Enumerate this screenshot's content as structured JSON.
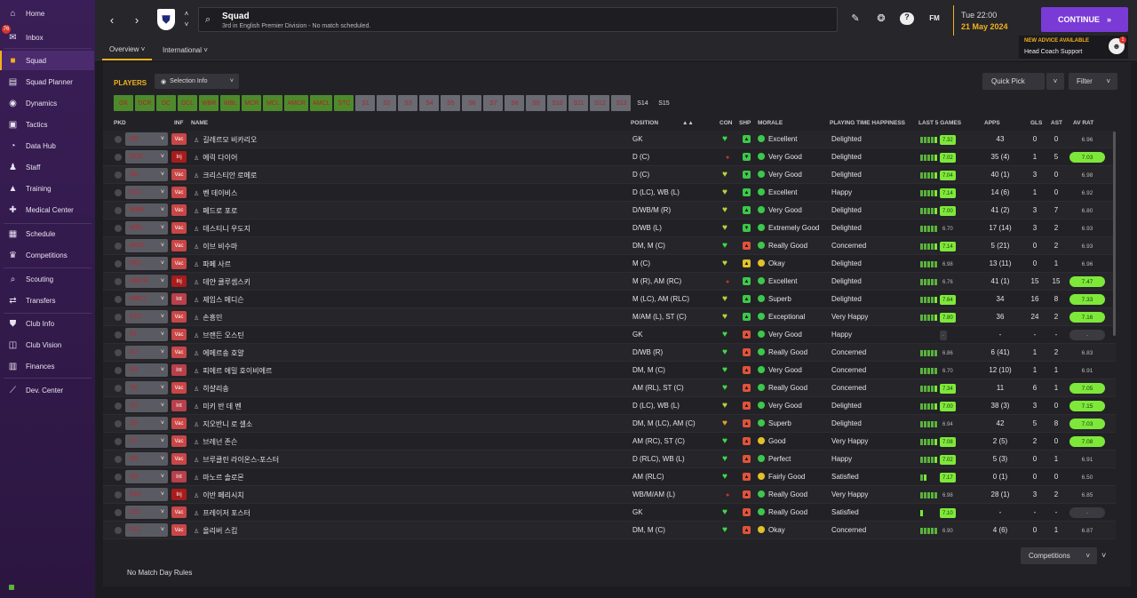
{
  "sidebar": {
    "items": [
      {
        "label": "Home",
        "icon": "home-icon",
        "glyph": "⌂"
      },
      {
        "label": "Inbox",
        "icon": "inbox-icon",
        "glyph": "✉"
      },
      {
        "label": "Squad",
        "icon": "shirt-icon",
        "glyph": "■"
      },
      {
        "label": "Squad Planner",
        "icon": "planner-icon",
        "glyph": "▤"
      },
      {
        "label": "Dynamics",
        "icon": "dynamics-icon",
        "glyph": "◉"
      },
      {
        "label": "Tactics",
        "icon": "tactics-icon",
        "glyph": "▣"
      },
      {
        "label": "Data Hub",
        "icon": "data-hub-icon",
        "glyph": "◔"
      },
      {
        "label": "Staff",
        "icon": "staff-icon",
        "glyph": "♟"
      },
      {
        "label": "Training",
        "icon": "training-icon",
        "glyph": "▲"
      },
      {
        "label": "Medical Center",
        "icon": "medical-icon",
        "glyph": "✚"
      },
      {
        "label": "Schedule",
        "icon": "schedule-icon",
        "glyph": "▦"
      },
      {
        "label": "Competitions",
        "icon": "trophy-icon",
        "glyph": "♛"
      },
      {
        "label": "Scouting",
        "icon": "scouting-icon",
        "glyph": "⌕"
      },
      {
        "label": "Transfers",
        "icon": "transfers-icon",
        "glyph": "⇄"
      },
      {
        "label": "Club Info",
        "icon": "club-info-icon",
        "glyph": "⛊"
      },
      {
        "label": "Club Vision",
        "icon": "club-vision-icon",
        "glyph": "◫"
      },
      {
        "label": "Finances",
        "icon": "finances-icon",
        "glyph": "▥"
      },
      {
        "label": "Dev. Center",
        "icon": "dev-center-icon",
        "glyph": "⟋"
      }
    ],
    "inbox_badge": "76"
  },
  "header": {
    "title": "Squad",
    "subtitle": "3rd in English Premier Division - No match scheduled.",
    "time": "Tue 22:00",
    "date": "21 May 2024",
    "continue_label": "CONTINUE",
    "fm_label": "FM",
    "advice_title": "NEW ADVICE AVAILABLE",
    "advice_text": "Head Coach Support",
    "advice_badge": "1",
    "tabs": [
      "Overview",
      "International"
    ]
  },
  "panel": {
    "players_label": "PLAYERS",
    "selection_info": "Selection Info",
    "quick_pick": "Quick Pick",
    "filter": "Filter",
    "competitions": "Competitions",
    "no_match_day_rules": "No Match Day Rules",
    "positions_on": [
      "GK",
      "DCR",
      "DC",
      "DCL",
      "WBR",
      "WBL",
      "MCR",
      "MCL",
      "AMCR",
      "AMCL",
      "STC"
    ],
    "positions_off": [
      "S1",
      "S2",
      "S3",
      "S4",
      "S5",
      "S6",
      "S7",
      "S8",
      "S9",
      "S10",
      "S11",
      "S12",
      "S13"
    ],
    "positions_plain": [
      "S14",
      "S15"
    ],
    "columns": {
      "pkd": "PKD",
      "inf": "INF",
      "name": "NAME",
      "position": "POSITION",
      "con": "CON",
      "shp": "SHP",
      "morale": "MORALE",
      "happiness": "PLAYING TIME HAPPINESS",
      "last5": "LAST 5 GAMES",
      "apps": "APPS",
      "gls": "GLS",
      "ast": "AST",
      "avrat": "AV RAT"
    }
  },
  "colors": {
    "accent": "#f3b11c",
    "continue": "#7a3ad6",
    "good": "#5ab33b",
    "bright": "#7ee83a",
    "morale_green": "#3cc84a",
    "morale_yellow": "#e0c12a"
  },
  "players": [
    {
      "pkd": "GK",
      "inf": "Vac",
      "name": "길레르모 비카리오",
      "pos": "GK",
      "con": "heart",
      "shp": "up",
      "morale": "Excellent",
      "mc": "g",
      "hap": "Delighted",
      "bars": 5,
      "rt": "7.32",
      "rc": "b",
      "apps": "43",
      "gls": "0",
      "ast": "0",
      "av": "6.96",
      "ac": "n"
    },
    {
      "pkd": "DCR",
      "inf": "Inj",
      "name": "에릭 다이어",
      "pos": "D (C)",
      "con": "dot",
      "shp": "down",
      "morale": "Very Good",
      "mc": "g",
      "hap": "Delighted",
      "bars": 5,
      "rt": "7.02",
      "rc": "b",
      "apps": "35 (4)",
      "gls": "1",
      "ast": "5",
      "av": "7.03",
      "ac": "b"
    },
    {
      "pkd": "DC",
      "inf": "Vac",
      "name": "크리스티안 로메로",
      "pos": "D (C)",
      "con": "yheart",
      "shp": "down",
      "morale": "Very Good",
      "mc": "g",
      "hap": "Delighted",
      "bars": 5,
      "rt": "7.04",
      "rc": "b",
      "apps": "40 (1)",
      "gls": "3",
      "ast": "0",
      "av": "6.98",
      "ac": "n"
    },
    {
      "pkd": "DCL",
      "inf": "Vac",
      "name": "벤 데이비스",
      "pos": "D (LC), WB (L)",
      "con": "yheart",
      "shp": "up",
      "morale": "Excellent",
      "mc": "g",
      "hap": "Happy",
      "bars": 5,
      "rt": "7.14",
      "rc": "b",
      "apps": "14 (6)",
      "gls": "1",
      "ast": "0",
      "av": "6.92",
      "ac": "n"
    },
    {
      "pkd": "WBR",
      "inf": "Vac",
      "name": "페드로 포로",
      "pos": "D/WB/M (R)",
      "con": "yheart",
      "shp": "up",
      "morale": "Very Good",
      "mc": "g",
      "hap": "Delighted",
      "bars": 5,
      "rt": "7.00",
      "rc": "b",
      "apps": "41 (2)",
      "gls": "3",
      "ast": "7",
      "av": "6.80",
      "ac": "n"
    },
    {
      "pkd": "WBL",
      "inf": "Vac",
      "name": "데스티니 우도지",
      "pos": "D/WB (L)",
      "con": "yheart",
      "shp": "down",
      "morale": "Extremely Good",
      "mc": "g",
      "hap": "Delighted",
      "bars": 5,
      "rt": "6.70",
      "rc": "n",
      "apps": "17 (14)",
      "gls": "3",
      "ast": "2",
      "av": "6.93",
      "ac": "n"
    },
    {
      "pkd": "MCR",
      "inf": "Vac",
      "name": "이브 비수마",
      "pos": "DM, M (C)",
      "con": "heart",
      "shp": "redup",
      "morale": "Really Good",
      "mc": "g",
      "hap": "Concerned",
      "bars": 5,
      "rt": "7.14",
      "rc": "b",
      "apps": "5 (21)",
      "gls": "0",
      "ast": "2",
      "av": "6.93",
      "ac": "n"
    },
    {
      "pkd": "MCL",
      "inf": "Vac",
      "name": "파페 사르",
      "pos": "M (C)",
      "con": "yheart",
      "shp": "yup",
      "morale": "Okay",
      "mc": "y",
      "hap": "Delighted",
      "bars": 5,
      "rt": "6.98",
      "rc": "n",
      "apps": "13 (11)",
      "gls": "0",
      "ast": "1",
      "av": "6.96",
      "ac": "n"
    },
    {
      "pkd": "AMCR",
      "inf": "Inj",
      "name": "데얀 쿨루셉스키",
      "pos": "M (R), AM (RC)",
      "con": "dot",
      "shp": "up",
      "morale": "Excellent",
      "mc": "g",
      "hap": "Delighted",
      "bars": 5,
      "rt": "6.76",
      "rc": "n",
      "apps": "41 (1)",
      "gls": "15",
      "ast": "15",
      "av": "7.47",
      "ac": "b"
    },
    {
      "pkd": "AMCL",
      "inf": "Int",
      "name": "제임스 메디슨",
      "pos": "M (LC), AM (RLC)",
      "con": "yheart",
      "shp": "up",
      "morale": "Superb",
      "mc": "g",
      "hap": "Delighted",
      "bars": 5,
      "rt": "7.64",
      "rc": "b",
      "apps": "34",
      "gls": "16",
      "ast": "8",
      "av": "7.33",
      "ac": "b"
    },
    {
      "pkd": "STC",
      "inf": "Vac",
      "name": "손흥민",
      "pos": "M/AM (L), ST (C)",
      "con": "yheart",
      "shp": "up",
      "morale": "Exceptional",
      "mc": "g",
      "hap": "Very Happy",
      "bars": 5,
      "rt": "7.80",
      "rc": "b",
      "apps": "36",
      "gls": "24",
      "ast": "2",
      "av": "7.16",
      "ac": "b"
    },
    {
      "pkd": "S1",
      "inf": "Vac",
      "name": "브랜든 오스틴",
      "pos": "GK",
      "con": "heart",
      "shp": "redup",
      "morale": "Very Good",
      "mc": "g",
      "hap": "Happy",
      "bars": 0,
      "rt": "-",
      "rc": "n",
      "apps": "-",
      "gls": "-",
      "ast": "-",
      "av": "-",
      "ac": "n"
    },
    {
      "pkd": "S2",
      "inf": "Vac",
      "name": "에메르송 호얄",
      "pos": "D/WB (R)",
      "con": "heart",
      "shp": "redup",
      "morale": "Really Good",
      "mc": "g",
      "hap": "Concerned",
      "bars": 5,
      "rt": "6.86",
      "rc": "n",
      "apps": "6 (41)",
      "gls": "1",
      "ast": "2",
      "av": "6.83",
      "ac": "n"
    },
    {
      "pkd": "S3",
      "inf": "Int",
      "name": "피에르 에밀 호이비에르",
      "pos": "DM, M (C)",
      "con": "heart",
      "shp": "redup",
      "morale": "Very Good",
      "mc": "g",
      "hap": "Concerned",
      "bars": 5,
      "rt": "6.70",
      "rc": "n",
      "apps": "12 (10)",
      "gls": "1",
      "ast": "1",
      "av": "6.91",
      "ac": "n"
    },
    {
      "pkd": "S4",
      "inf": "Vac",
      "name": "히샬리송",
      "pos": "AM (RL), ST (C)",
      "con": "heart",
      "shp": "redup",
      "morale": "Really Good",
      "mc": "g",
      "hap": "Concerned",
      "bars": 5,
      "rt": "7.34",
      "rc": "b",
      "apps": "11",
      "gls": "6",
      "ast": "1",
      "av": "7.05",
      "ac": "b"
    },
    {
      "pkd": "S5",
      "inf": "Int",
      "name": "미키 반 데 벤",
      "pos": "D (LC), WB (L)",
      "con": "yheart",
      "shp": "redup",
      "morale": "Very Good",
      "mc": "g",
      "hap": "Delighted",
      "bars": 5,
      "rt": "7.00",
      "rc": "b",
      "apps": "38 (3)",
      "gls": "3",
      "ast": "0",
      "av": "7.15",
      "ac": "b"
    },
    {
      "pkd": "S6",
      "inf": "Vac",
      "name": "지오반니 로 셀소",
      "pos": "DM, M (LC), AM (C)",
      "con": "oheart",
      "shp": "redup",
      "morale": "Superb",
      "mc": "g",
      "hap": "Delighted",
      "bars": 5,
      "rt": "6.94",
      "rc": "n",
      "apps": "42",
      "gls": "5",
      "ast": "8",
      "av": "7.03",
      "ac": "b"
    },
    {
      "pkd": "S7",
      "inf": "Vac",
      "name": "브레넌 존슨",
      "pos": "AM (RC), ST (C)",
      "con": "heart",
      "shp": "redup",
      "morale": "Good",
      "mc": "y",
      "hap": "Very Happy",
      "bars": 5,
      "rt": "7.08",
      "rc": "b",
      "apps": "2 (5)",
      "gls": "2",
      "ast": "0",
      "av": "7.08",
      "ac": "b"
    },
    {
      "pkd": "S8",
      "inf": "Vac",
      "name": "브루클린 라이온스-포스터",
      "pos": "D (RLC), WB (L)",
      "con": "heart",
      "shp": "redup",
      "morale": "Perfect",
      "mc": "g",
      "hap": "Happy",
      "bars": 5,
      "rt": "7.02",
      "rc": "b",
      "apps": "5 (3)",
      "gls": "0",
      "ast": "1",
      "av": "6.91",
      "ac": "n"
    },
    {
      "pkd": "S9",
      "inf": "Int",
      "name": "마노르 솔로몬",
      "pos": "AM (RLC)",
      "con": "heart",
      "shp": "redup",
      "morale": "Fairly Good",
      "mc": "y",
      "hap": "Satisfied",
      "bars": 2,
      "rt": "7.17",
      "rc": "b",
      "apps": "0 (1)",
      "gls": "0",
      "ast": "0",
      "av": "6.50",
      "ac": "n"
    },
    {
      "pkd": "S10",
      "inf": "Inj",
      "name": "이반 페리시치",
      "pos": "WB/M/AM (L)",
      "con": "dot",
      "shp": "redup",
      "morale": "Really Good",
      "mc": "g",
      "hap": "Very Happy",
      "bars": 5,
      "rt": "6.98",
      "rc": "n",
      "apps": "28 (1)",
      "gls": "3",
      "ast": "2",
      "av": "6.85",
      "ac": "n"
    },
    {
      "pkd": "S11",
      "inf": "Vac",
      "name": "프레이저 포스터",
      "pos": "GK",
      "con": "heart",
      "shp": "redup",
      "morale": "Really Good",
      "mc": "g",
      "hap": "Satisfied",
      "bars": 1,
      "rt": "7.10",
      "rc": "b",
      "apps": "-",
      "gls": "-",
      "ast": "-",
      "av": "-",
      "ac": "n"
    },
    {
      "pkd": "S12",
      "inf": "Vac",
      "name": "올리버 스킵",
      "pos": "DM, M (C)",
      "con": "heart",
      "shp": "redup",
      "morale": "Okay",
      "mc": "y",
      "hap": "Concerned",
      "bars": 5,
      "rt": "6.90",
      "rc": "n",
      "apps": "4 (6)",
      "gls": "0",
      "ast": "1",
      "av": "6.87",
      "ac": "n"
    }
  ]
}
